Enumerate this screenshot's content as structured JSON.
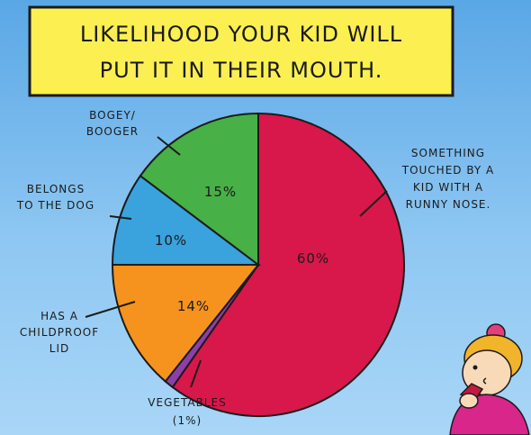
{
  "chart_data": {
    "type": "pie",
    "title": "LIKELIHOOD YOUR KID WILL PUT IT IN THEIR MOUTH.",
    "title_lines": [
      "LIKELIHOOD YOUR KID WILL",
      "PUT IT IN THEIR MOUTH."
    ],
    "slices": [
      {
        "label": "SOMETHING TOUCHED BY A KID WITH A RUNNY NOSE.",
        "label_lines": [
          "SOMETHING",
          "TOUCHED BY A",
          "KID WITH A",
          "RUNNY NOSE."
        ],
        "value": 60,
        "value_label": "60%",
        "color": "#d8174a"
      },
      {
        "label": "VEGETABLES (1%)",
        "label_lines": [
          "VEGETABLES",
          "(1%)"
        ],
        "value": 1,
        "value_label": "",
        "color": "#8d3fa8"
      },
      {
        "label": "HAS A CHILDPROOF LID",
        "label_lines": [
          "HAS A",
          "CHILDPROOF",
          "LID"
        ],
        "value": 14,
        "value_label": "14%",
        "color": "#f6931e"
      },
      {
        "label": "BELONGS TO THE DOG",
        "label_lines": [
          "BELONGS",
          "TO THE DOG"
        ],
        "value": 10,
        "value_label": "10%",
        "color": "#3aa2dd"
      },
      {
        "label": "BOGEY/ BOOGER",
        "label_lines": [
          "BOGEY/",
          "BOOGER"
        ],
        "value": 15,
        "value_label": "15%",
        "color": "#47b046"
      }
    ]
  },
  "colors": {
    "title_box": "#fbef52",
    "background_top": "#5aa7e6",
    "background_bottom": "#a9d6f7"
  }
}
